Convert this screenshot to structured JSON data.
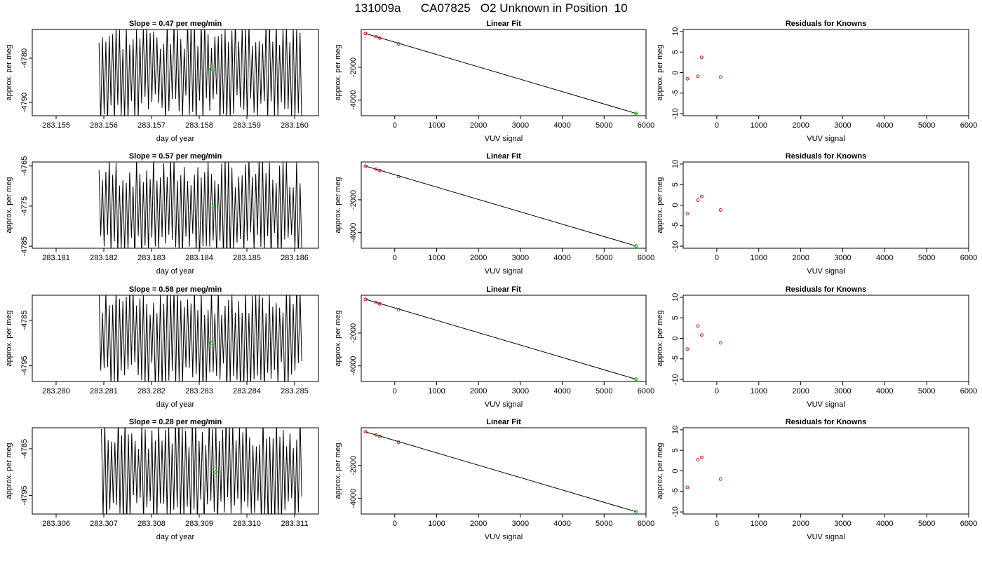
{
  "page": {
    "title": "131009a      CA07825   O2 Unknown in Position  10"
  },
  "colors": {
    "trace": "#000000",
    "highlight": "#00cc00",
    "known_points": "#cc0000"
  },
  "labels": {
    "time_xlabel": "day of year",
    "ylabel": "approx. per meg",
    "vuv_xlabel": "VUV signal",
    "linear_title": "Linear Fit",
    "resid_title": "Residuals for Knowns"
  },
  "chart_data": [
    {
      "type": "line",
      "panel": "time-series",
      "row": 1,
      "title": "Slope =  0.47  per meg/min",
      "xlabel": "day of year",
      "ylabel": "approx. per meg",
      "xlim": [
        283.1545,
        283.1605
      ],
      "ylim": [
        -4793,
        -4773.5
      ],
      "xticks": [
        283.155,
        283.156,
        283.157,
        283.158,
        283.159,
        283.16
      ],
      "xticklabels": [
        "283.155",
        "283.156",
        "283.157",
        "283.158",
        "283.159",
        "283.160"
      ],
      "yticks": [
        -4780,
        -4790
      ],
      "yticklabels": [
        "-4780",
        "-4790"
      ],
      "trace": {
        "x_start": 283.1559,
        "x_end": 283.16015,
        "count": 120,
        "y_center": -4783,
        "y_amplitude": 9,
        "seed": 3
      },
      "marker": {
        "x": 283.15825,
        "y": -4782.5
      }
    },
    {
      "type": "scatter",
      "panel": "linear-fit",
      "row": 1,
      "title": "Linear Fit",
      "xlabel": "VUV signal",
      "ylabel": "approx. per meg",
      "xlim": [
        -800,
        6000
      ],
      "ylim": [
        -4950,
        300
      ],
      "xticks": [
        0,
        1000,
        2000,
        3000,
        4000,
        5000,
        6000
      ],
      "xticklabels": [
        "0",
        "1000",
        "2000",
        "3000",
        "4000",
        "5000",
        "6000"
      ],
      "yticks": [
        -2000,
        -4000
      ],
      "yticklabels": [
        "-2000",
        "-4000"
      ],
      "knowns": {
        "x": [
          -700,
          -450,
          -360,
          90
        ],
        "y": [
          53,
          -135,
          -225,
          -585
        ]
      },
      "unknown": {
        "x": 5760,
        "y": -4810
      },
      "fit_line": {
        "x": [
          -700,
          5760
        ],
        "y": [
          53,
          -4810
        ]
      }
    },
    {
      "type": "scatter",
      "panel": "residuals",
      "row": 1,
      "title": "Residuals for Knowns",
      "xlabel": "VUV signal",
      "ylabel": "approx. per meg",
      "xlim": [
        -800,
        6000
      ],
      "ylim": [
        -10.5,
        10.5
      ],
      "xticks": [
        0,
        1000,
        2000,
        3000,
        4000,
        5000,
        6000
      ],
      "xticklabels": [
        "0",
        "1000",
        "2000",
        "3000",
        "4000",
        "5000",
        "6000"
      ],
      "yticks": [
        10,
        5,
        0,
        -5,
        -10
      ],
      "yticklabels": [
        "10",
        "5",
        "0",
        "-5",
        "-10"
      ],
      "points": {
        "x": [
          -700,
          -450,
          -360,
          90
        ],
        "y": [
          -1.5,
          -0.9,
          3.7,
          -1.1
        ]
      }
    },
    {
      "type": "line",
      "panel": "time-series",
      "row": 2,
      "title": "Slope =  0.57  per meg/min",
      "xlabel": "day of year",
      "ylabel": "approx. per meg",
      "xlim": [
        283.1805,
        283.1865
      ],
      "ylim": [
        -4785.5,
        -4764
      ],
      "xticks": [
        283.181,
        283.182,
        283.183,
        283.184,
        283.185,
        283.186
      ],
      "xticklabels": [
        "283.181",
        "283.182",
        "283.183",
        "283.184",
        "283.185",
        "283.186"
      ],
      "yticks": [
        -4765,
        -4775,
        -4785
      ],
      "yticklabels": [
        "-4765",
        "-4775",
        "-4785"
      ],
      "trace": {
        "x_start": 283.1819,
        "x_end": 283.18615,
        "count": 120,
        "y_center": -4776,
        "y_amplitude": 10,
        "seed": 7
      },
      "marker": {
        "x": 283.1843,
        "y": -4775
      }
    },
    {
      "type": "scatter",
      "panel": "linear-fit",
      "row": 2,
      "title": "Linear Fit",
      "xlabel": "VUV signal",
      "ylabel": "approx. per meg",
      "xlim": [
        -800,
        6000
      ],
      "ylim": [
        -4950,
        300
      ],
      "xticks": [
        0,
        1000,
        2000,
        3000,
        4000,
        5000,
        6000
      ],
      "xticklabels": [
        "0",
        "1000",
        "2000",
        "3000",
        "4000",
        "5000",
        "6000"
      ],
      "yticks": [
        -2000,
        -4000
      ],
      "yticklabels": [
        "-2000",
        "-4000"
      ],
      "knowns": {
        "x": [
          -700,
          -450,
          -360,
          90
        ],
        "y": [
          53,
          -135,
          -225,
          -585
        ]
      },
      "unknown": {
        "x": 5760,
        "y": -4810
      },
      "fit_line": {
        "x": [
          -700,
          5760
        ],
        "y": [
          53,
          -4810
        ]
      }
    },
    {
      "type": "scatter",
      "panel": "residuals",
      "row": 2,
      "title": "Residuals for Knowns",
      "xlabel": "VUV signal",
      "ylabel": "approx. per meg",
      "xlim": [
        -800,
        6000
      ],
      "ylim": [
        -10.5,
        10.5
      ],
      "xticks": [
        0,
        1000,
        2000,
        3000,
        4000,
        5000,
        6000
      ],
      "xticklabels": [
        "0",
        "1000",
        "2000",
        "3000",
        "4000",
        "5000",
        "6000"
      ],
      "yticks": [
        10,
        5,
        0,
        -5,
        -10
      ],
      "yticklabels": [
        "10",
        "5",
        "0",
        "-5",
        "-10"
      ],
      "points": {
        "x": [
          -700,
          -450,
          -360,
          90
        ],
        "y": [
          -2.1,
          1.2,
          2.1,
          -1.2
        ]
      }
    },
    {
      "type": "line",
      "panel": "time-series",
      "row": 3,
      "title": "Slope =  0.58  per meg/min",
      "xlabel": "day of year",
      "ylabel": "approx. per meg",
      "xlim": [
        283.2795,
        283.2855
      ],
      "ylim": [
        -4798.5,
        -4779.5
      ],
      "xticks": [
        283.28,
        283.281,
        283.282,
        283.283,
        283.284,
        283.285
      ],
      "xticklabels": [
        "283.280",
        "283.281",
        "283.282",
        "283.283",
        "283.284",
        "283.285"
      ],
      "yticks": [
        -4785,
        -4795
      ],
      "yticklabels": [
        "-4785",
        "-4795"
      ],
      "trace": {
        "x_start": 283.2809,
        "x_end": 283.28515,
        "count": 120,
        "y_center": -4789,
        "y_amplitude": 9,
        "seed": 11
      },
      "marker": {
        "x": 283.28325,
        "y": -4790
      }
    },
    {
      "type": "scatter",
      "panel": "linear-fit",
      "row": 3,
      "title": "Linear Fit",
      "xlabel": "VUV signal",
      "ylabel": "approx. per meg",
      "xlim": [
        -800,
        6000
      ],
      "ylim": [
        -4950,
        300
      ],
      "xticks": [
        0,
        1000,
        2000,
        3000,
        4000,
        5000,
        6000
      ],
      "xticklabels": [
        "0",
        "1000",
        "2000",
        "3000",
        "4000",
        "5000",
        "6000"
      ],
      "yticks": [
        -2000,
        -4000
      ],
      "yticklabels": [
        "-2000",
        "-4000"
      ],
      "knowns": {
        "x": [
          -700,
          -450,
          -360,
          90
        ],
        "y": [
          53,
          -135,
          -225,
          -585
        ]
      },
      "unknown": {
        "x": 5760,
        "y": -4810
      },
      "fit_line": {
        "x": [
          -700,
          5760
        ],
        "y": [
          53,
          -4810
        ]
      }
    },
    {
      "type": "scatter",
      "panel": "residuals",
      "row": 3,
      "title": "Residuals for Knowns",
      "xlabel": "VUV signal",
      "ylabel": "approx. per meg",
      "xlim": [
        -800,
        6000
      ],
      "ylim": [
        -10.5,
        10.5
      ],
      "xticks": [
        0,
        1000,
        2000,
        3000,
        4000,
        5000,
        6000
      ],
      "xticklabels": [
        "0",
        "1000",
        "2000",
        "3000",
        "4000",
        "5000",
        "6000"
      ],
      "yticks": [
        10,
        5,
        0,
        -5,
        -10
      ],
      "yticklabels": [
        "10",
        "5",
        "0",
        "-5",
        "-10"
      ],
      "points": {
        "x": [
          -700,
          -450,
          -360,
          90
        ],
        "y": [
          -2.6,
          3.0,
          0.8,
          -1.1
        ]
      }
    },
    {
      "type": "line",
      "panel": "time-series",
      "row": 4,
      "title": "Slope =  0.28  per meg/min",
      "xlabel": "day of year",
      "ylabel": "approx. per meg",
      "xlim": [
        283.3055,
        283.3115
      ],
      "ylim": [
        -4799,
        -4780.5
      ],
      "xticks": [
        283.306,
        283.307,
        283.308,
        283.309,
        283.31,
        283.311
      ],
      "xticklabels": [
        "283.306",
        "283.307",
        "283.308",
        "283.309",
        "283.310",
        "283.311"
      ],
      "yticks": [
        -4785,
        -4795
      ],
      "yticklabels": [
        "-4785",
        "-4795"
      ],
      "trace": {
        "x_start": 283.30695,
        "x_end": 283.31115,
        "count": 120,
        "y_center": -4790,
        "y_amplitude": 9,
        "seed": 19
      },
      "marker": {
        "x": 283.30935,
        "y": -4790
      }
    },
    {
      "type": "scatter",
      "panel": "linear-fit",
      "row": 4,
      "title": "Linear Fit",
      "xlabel": "VUV signal",
      "ylabel": "approx. per meg",
      "xlim": [
        -800,
        6000
      ],
      "ylim": [
        -4950,
        300
      ],
      "xticks": [
        0,
        1000,
        2000,
        3000,
        4000,
        5000,
        6000
      ],
      "xticklabels": [
        "0",
        "1000",
        "2000",
        "3000",
        "4000",
        "5000",
        "6000"
      ],
      "yticks": [
        -2000,
        -4000
      ],
      "yticklabels": [
        "-2000",
        "-4000"
      ],
      "knowns": {
        "x": [
          -700,
          -450,
          -360,
          90
        ],
        "y": [
          53,
          -135,
          -225,
          -585
        ]
      },
      "unknown": {
        "x": 5760,
        "y": -4810
      },
      "fit_line": {
        "x": [
          -700,
          5760
        ],
        "y": [
          53,
          -4810
        ]
      }
    },
    {
      "type": "scatter",
      "panel": "residuals",
      "row": 4,
      "title": "Residuals for Knowns",
      "xlabel": "VUV signal",
      "ylabel": "approx. per meg",
      "xlim": [
        -800,
        6000
      ],
      "ylim": [
        -10.5,
        10.5
      ],
      "xticks": [
        0,
        1000,
        2000,
        3000,
        4000,
        5000,
        6000
      ],
      "xticklabels": [
        "0",
        "1000",
        "2000",
        "3000",
        "4000",
        "5000",
        "6000"
      ],
      "yticks": [
        10,
        5,
        0,
        -5,
        -10
      ],
      "yticklabels": [
        "10",
        "5",
        "0",
        "-5",
        "-10"
      ],
      "points": {
        "x": [
          -700,
          -450,
          -360,
          90
        ],
        "y": [
          -4.0,
          2.7,
          3.3,
          -2.0
        ]
      }
    }
  ]
}
